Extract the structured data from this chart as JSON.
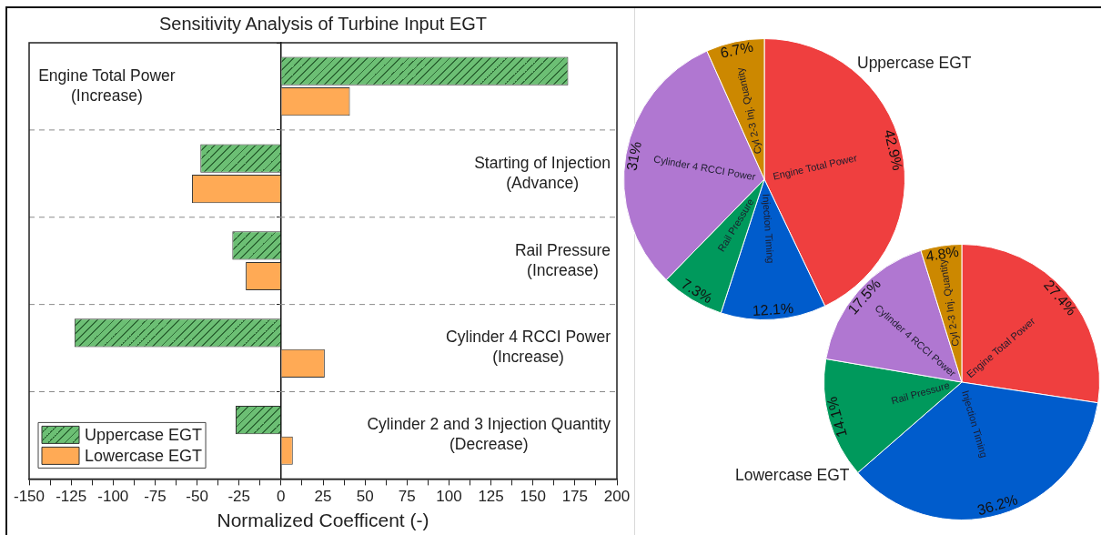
{
  "chart_data": [
    {
      "type": "bar",
      "title": "Sensitivity Analysis of Turbine Input EGT",
      "xlabel": "Normalized Coefficent (-)",
      "orientation": "horizontal",
      "categories": [
        "Engine Total Power\n(Increase)",
        "Starting of Injection\n(Advance)",
        "Rail Pressure\n(Increase)",
        "Cylinder 4 RCCI Power\n(Increase)",
        "Cylinder 2 and 3 Injection Quantity\n(Decrease)"
      ],
      "series": [
        {
          "name": "Uppercase EGT",
          "color": "#6cbf74",
          "values": [
            171,
            -48,
            -29,
            -123,
            -27
          ]
        },
        {
          "name": "Lowercase EGT",
          "color": "#ffaa55",
          "values": [
            41,
            -53,
            -21,
            26,
            7
          ]
        }
      ],
      "xlim": [
        -150,
        200
      ],
      "xticks": [
        -150,
        {
          "value": -137.5,
          "label": null
        },
        -125,
        {
          "value": -112.5,
          "label": null
        },
        -100,
        {
          "value": -87.5,
          "label": null
        },
        -75,
        {
          "value": -62.5,
          "label": null
        },
        -50,
        {
          "value": -37.5,
          "label": null
        },
        -25,
        {
          "value": -12.5,
          "label": null
        },
        0,
        {
          "value": 12.5,
          "label": null
        },
        25,
        {
          "value": 37.5,
          "label": null
        },
        50,
        {
          "value": 62.5,
          "label": null
        },
        75,
        {
          "value": 87.5,
          "label": null
        },
        100,
        {
          "value": 112.5,
          "label": null
        },
        125,
        {
          "value": 137.5,
          "label": null
        },
        150,
        {
          "value": 162.5,
          "label": null
        },
        175,
        {
          "value": 187.5,
          "label": null
        },
        200
      ],
      "grid": "y",
      "legend": "bottom left"
    },
    {
      "type": "pie",
      "title": "Uppercase EGT",
      "categories": [
        "Engine Total Power",
        "Injection Timing",
        "Rail Pressure",
        "Cylinder 4 RCCI Power",
        "Cyl 2-3 Inj. Quantity"
      ],
      "values": [
        42.9,
        12.1,
        7.3,
        31,
        6.7
      ],
      "colors": [
        "#ef3f3f",
        "#005ccc",
        "#00995c",
        "#b077d1",
        "#cc8800"
      ],
      "value_labels": [
        "42.9%",
        "12.1%",
        "7.3%",
        "31%",
        "6.7%"
      ]
    },
    {
      "type": "pie",
      "title": "Lowercase EGT",
      "categories": [
        "Engine Total Power",
        "Injection Timing",
        "Rail Pressure",
        "Cylinder 4 RCCI Power",
        "Cyl 2-3 Inj. Quantity"
      ],
      "values": [
        27.4,
        36.2,
        14.1,
        17.5,
        4.8
      ],
      "colors": [
        "#ef3f3f",
        "#005ccc",
        "#00995c",
        "#b077d1",
        "#cc8800"
      ],
      "value_labels": [
        "27.4%",
        "36.2%",
        "14.1%",
        "17.5%",
        "4.8%"
      ]
    }
  ]
}
